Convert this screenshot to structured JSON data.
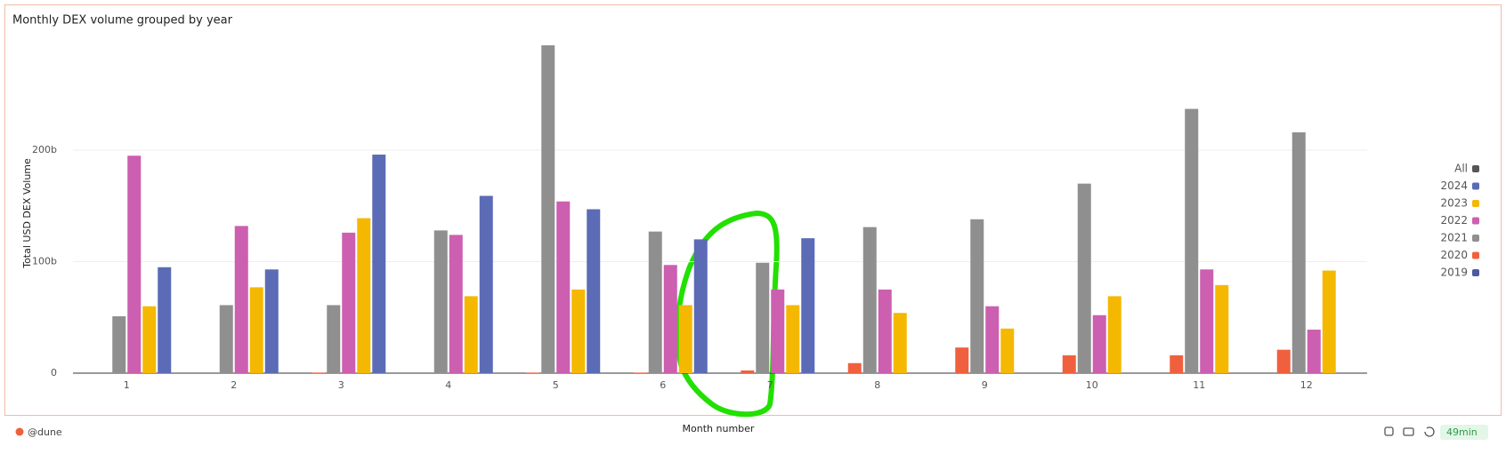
{
  "chart_data": {
    "type": "bar",
    "title": "Monthly DEX volume grouped by year",
    "x_label": "Month number",
    "y_label": "Total USD DEX Volume",
    "categories": [
      "1",
      "2",
      "3",
      "4",
      "5",
      "6",
      "7",
      "8",
      "9",
      "10",
      "11",
      "12"
    ],
    "series": [
      {
        "name": "2019",
        "color": "#4d5aa0",
        "values": [
          null,
          null,
          null,
          null,
          null,
          null,
          null,
          null,
          null,
          null,
          null,
          null
        ]
      },
      {
        "name": "2020",
        "color": "#f0603e",
        "values": [
          null,
          null,
          0.5,
          null,
          0.5,
          0.5,
          2.4,
          9,
          23,
          16,
          16,
          21
        ]
      },
      {
        "name": "2021",
        "color": "#8f8f8f",
        "values": [
          51,
          61,
          61,
          128,
          294,
          127,
          99,
          131,
          138,
          170,
          237,
          216
        ]
      },
      {
        "name": "2022",
        "color": "#cc5fb0",
        "values": [
          195,
          132,
          126,
          124,
          154,
          97,
          75,
          75,
          60,
          52,
          93,
          39
        ]
      },
      {
        "name": "2023",
        "color": "#f5b800",
        "values": [
          60,
          77,
          139,
          69,
          75,
          61,
          61,
          54,
          40,
          69,
          79,
          92
        ]
      },
      {
        "name": "2024",
        "color": "#5b6bb5",
        "values": [
          95,
          93,
          196,
          159,
          147,
          120,
          121,
          null,
          null,
          null,
          null,
          null
        ]
      }
    ],
    "legend_all": "All",
    "legend_all_color": "#555555",
    "legend": "right",
    "ylim": [
      0,
      300
    ],
    "yticks": [
      0,
      {
        "value": 100,
        "label": "100b"
      },
      {
        "value": 200,
        "label": "200b"
      }
    ],
    "grid": true
  },
  "footer": {
    "brand": "@dune",
    "age": "49min"
  }
}
